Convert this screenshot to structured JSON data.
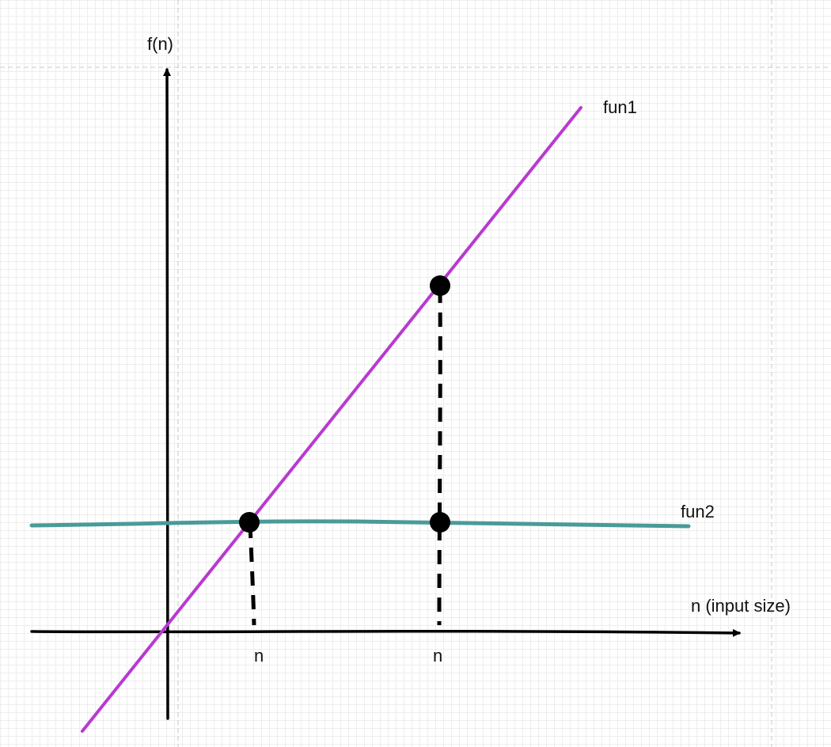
{
  "axes": {
    "y_label": "f(n)",
    "x_label": "n (input size)"
  },
  "curves": [
    {
      "name": "fun1",
      "color": "#b83ad1"
    },
    {
      "name": "fun2",
      "color": "#4a9a9a"
    }
  ],
  "x_marks": [
    {
      "label": "n"
    },
    {
      "label": "n"
    }
  ],
  "colors": {
    "axis": "#000000",
    "guide": "#c8c8c8",
    "grid": "#ededed",
    "point": "#000000"
  }
}
